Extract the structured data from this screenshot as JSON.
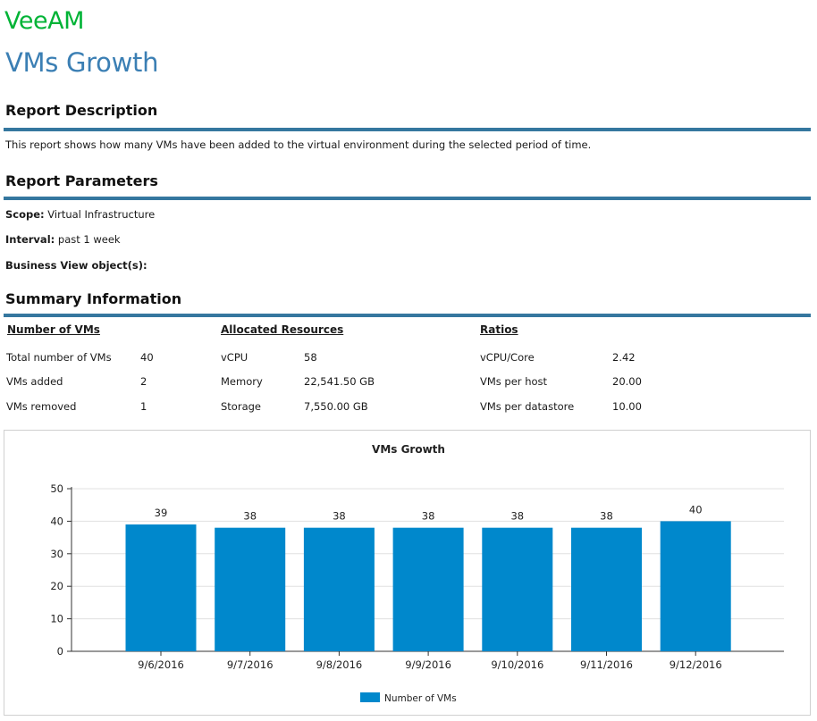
{
  "brand": {
    "logo_text": "VeeAM",
    "color": "#00b336"
  },
  "page_title": "VMs Growth",
  "report_description": {
    "heading": "Report Description",
    "text": "This report shows how many VMs have been added to the virtual environment during the selected period of time."
  },
  "report_parameters": {
    "heading": "Report Parameters",
    "scope_label": "Scope:",
    "scope_value": "Virtual Infrastructure",
    "interval_label": "Interval:",
    "interval_value": "past 1 week",
    "business_view_label": "Business View object(s):"
  },
  "summary": {
    "heading": "Summary Information",
    "number_of_vms": {
      "header": "Number of VMs",
      "rows": [
        {
          "label": "Total number of VMs",
          "value": "40"
        },
        {
          "label": "VMs added",
          "value": "2"
        },
        {
          "label": "VMs removed",
          "value": "1"
        }
      ]
    },
    "allocated_resources": {
      "header": "Allocated Resources",
      "rows": [
        {
          "label": "vCPU",
          "value": "58"
        },
        {
          "label": "Memory",
          "value": "22,541.50 GB"
        },
        {
          "label": "Storage",
          "value": "7,550.00 GB"
        }
      ]
    },
    "ratios": {
      "header": "Ratios",
      "rows": [
        {
          "label": "vCPU/Core",
          "value": "2.42"
        },
        {
          "label": "VMs per host",
          "value": "20.00"
        },
        {
          "label": "VMs per datastore",
          "value": "10.00"
        }
      ]
    }
  },
  "colors": {
    "title_blue": "#3b7fb4",
    "rule_blue": "#35779f",
    "bar_blue": "#0088cc"
  },
  "chart_data": {
    "type": "bar",
    "title": "VMs Growth",
    "categories": [
      "9/6/2016",
      "9/7/2016",
      "9/8/2016",
      "9/9/2016",
      "9/10/2016",
      "9/11/2016",
      "9/12/2016"
    ],
    "series": [
      {
        "name": "Number of VMs",
        "values": [
          39,
          38,
          38,
          38,
          38,
          38,
          40
        ],
        "color": "#0088cc"
      }
    ],
    "xlabel": "",
    "ylabel": "",
    "ylim": [
      0,
      50
    ],
    "yticks": [
      0,
      10,
      20,
      30,
      40,
      50
    ],
    "grid": true,
    "data_labels": true,
    "legend": "bottom-center"
  }
}
